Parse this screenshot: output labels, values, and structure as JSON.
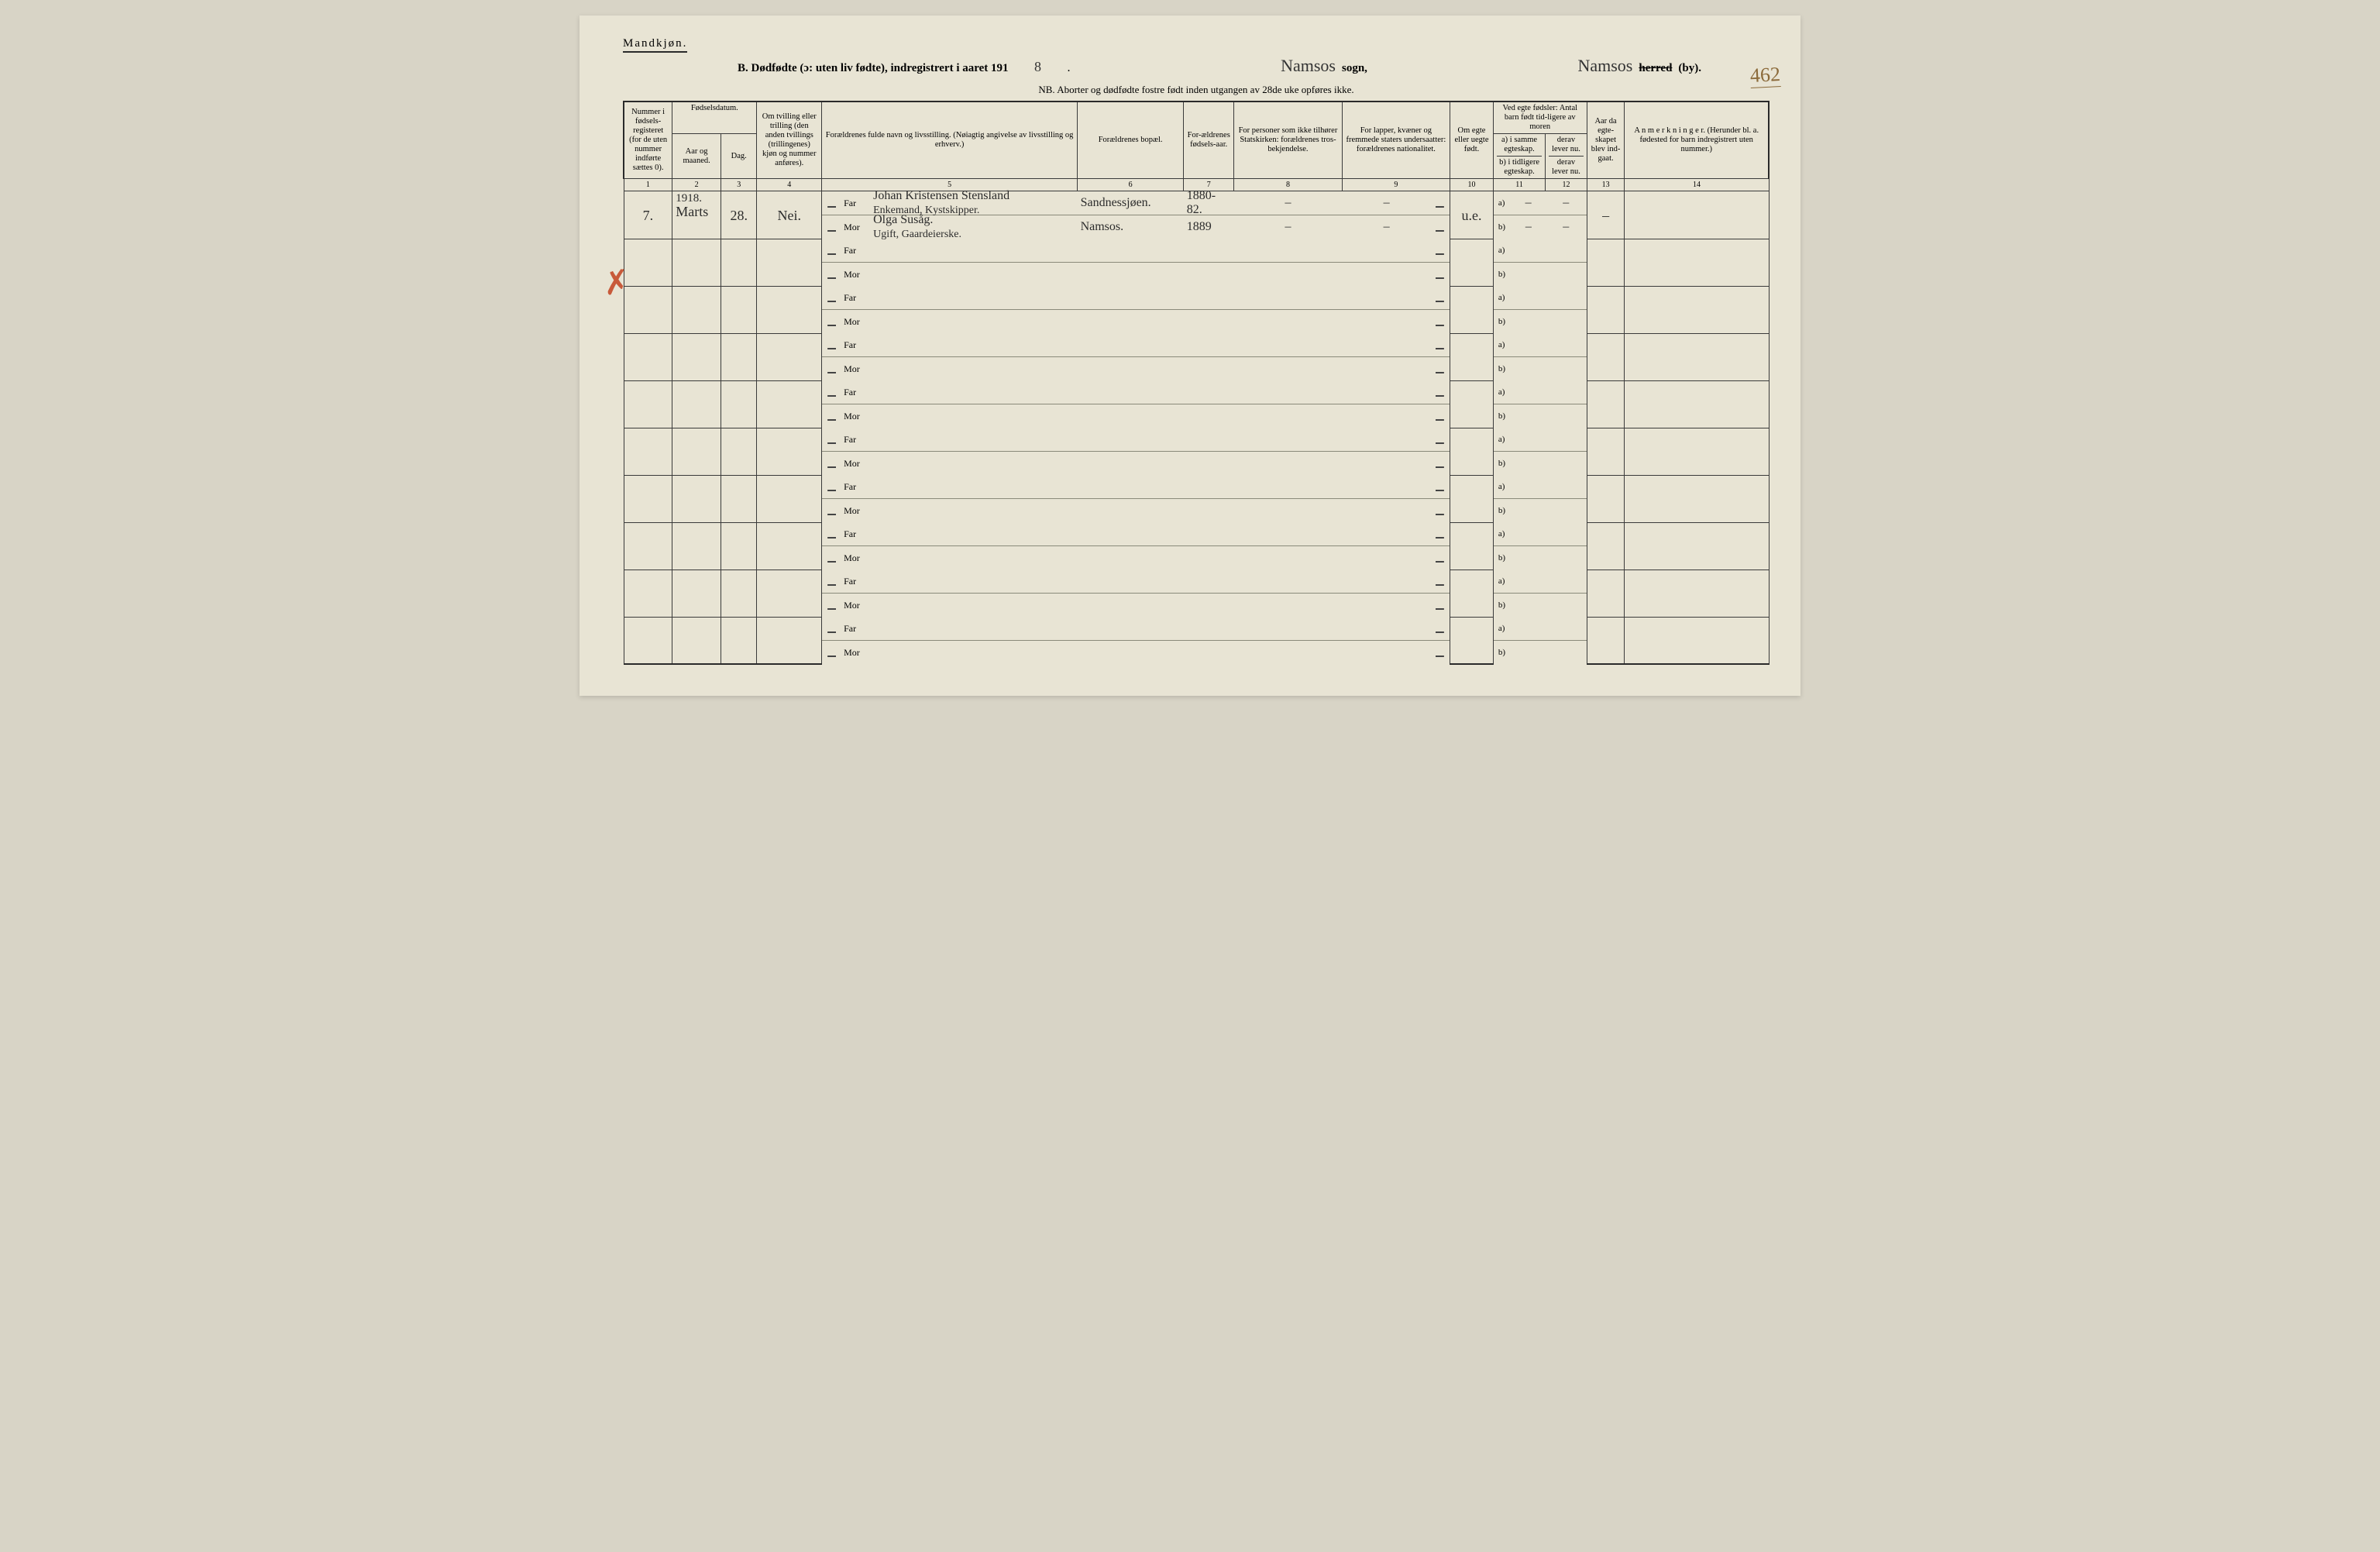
{
  "header": {
    "gender_label": "Mandkjøn.",
    "title_prefix": "B. Dødfødte (ɔ: uten liv fødte), indregistrert i aaret 191",
    "year_digit": "8",
    "sogn_hand": "Namsos",
    "sogn_label": "sogn,",
    "herred_hand": "Namsos",
    "herred_strike": "herred",
    "herred_suffix": "(by).",
    "nb": "NB.  Aborter og dødfødte fostre født inden utgangen av 28de uke opføres ikke.",
    "page_num": "462"
  },
  "columns": {
    "c1": "Nummer i fødsels-registeret (for de uten nummer indførte sættes 0).",
    "c2_group": "Fødselsdatum.",
    "c2": "Aar og maaned.",
    "c3": "Dag.",
    "c4": "Om tvilling eller trilling (den anden tvillings (trillingenes) kjøn og nummer anføres).",
    "c5": "Forældrenes fulde navn og livsstilling. (Nøiagtig angivelse av livsstilling og erhverv.)",
    "c6": "Forældrenes bopæl.",
    "c7": "For-ældrenes fødsels-aar.",
    "c8": "For personer som ikke tilhører Statskirken: forældrenes tros-bekjendelse.",
    "c9": "For lapper, kvæner og fremmede staters undersaatter: forældrenes nationalitet.",
    "c10": "Om egte eller uegte født.",
    "c11_group": "Ved egte fødsler: Antal barn født tid-ligere av moren",
    "c11a": "a) i samme egteskap.",
    "c11b": "b) i tidligere egteskap.",
    "c12": "derav lever nu.",
    "c13": "Aar da egte-skapet blev ind-gaat.",
    "c14": "A n m e r k n i n g e r. (Herunder bl. a. fødested for barn indregistrert uten nummer.)"
  },
  "colnums": [
    "1",
    "2",
    "3",
    "4",
    "5",
    "6",
    "7",
    "8",
    "9",
    "10",
    "11",
    "12",
    "13",
    "14"
  ],
  "labels": {
    "far": "Far",
    "mor": "Mor",
    "a": "a)",
    "b": "b)"
  },
  "row1": {
    "num": "7.",
    "year_line": "1918.",
    "month": "Marts",
    "day": "28.",
    "twin": "Nei.",
    "far_name": "Johan Kristensen Stensland",
    "far_stilling": "Enkemand, Kystskipper.",
    "mor_name": "Olga Susåg.",
    "mor_stilling": "Ugift, Gaardeierske.",
    "bopael_far": "Sandnessjøen.",
    "bopael_mor": "Namsos.",
    "far_aar": "1880-82.",
    "mor_aar": "1889",
    "c8_far": "–",
    "c8_mor": "–",
    "c9_far": "–",
    "c9_mor": "–",
    "egte": "u.e.",
    "a_val": "–",
    "a_lever": "–",
    "b_val": "–",
    "b_lever": "–",
    "c13": "–",
    "c14": ""
  },
  "empty_rows": 9
}
